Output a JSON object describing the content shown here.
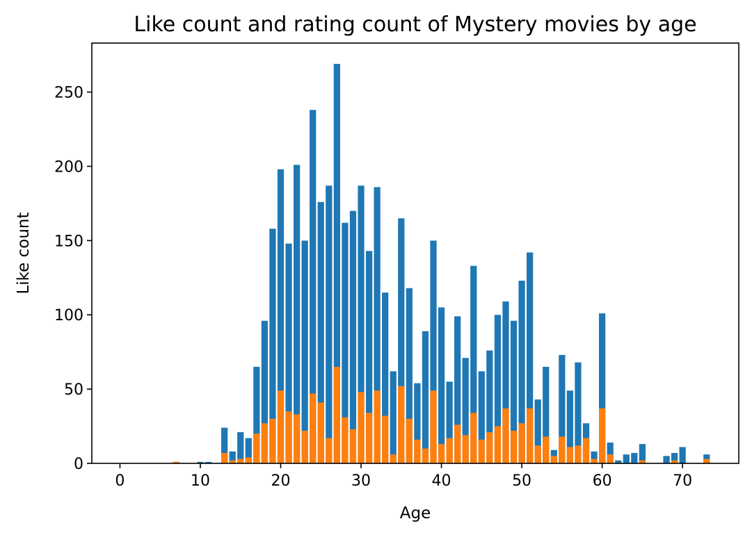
{
  "chart_data": {
    "type": "bar",
    "title": "Like count and rating count of Mystery movies by age",
    "xlabel": "Age",
    "ylabel": "Like count",
    "xlim": [
      -3.5,
      77
    ],
    "ylim": [
      0,
      283
    ],
    "xticks": [
      0,
      10,
      20,
      30,
      40,
      50,
      60,
      70
    ],
    "yticks": [
      0,
      50,
      100,
      150,
      200,
      250
    ],
    "grid": false,
    "legend": "none",
    "x": [
      0,
      1,
      7,
      10,
      11,
      13,
      14,
      15,
      16,
      17,
      18,
      19,
      20,
      21,
      22,
      23,
      24,
      25,
      26,
      27,
      28,
      29,
      30,
      31,
      32,
      33,
      34,
      35,
      36,
      37,
      38,
      39,
      40,
      41,
      42,
      43,
      44,
      45,
      46,
      47,
      48,
      49,
      50,
      51,
      52,
      53,
      54,
      55,
      56,
      57,
      58,
      59,
      60,
      61,
      62,
      63,
      64,
      65,
      68,
      69,
      70,
      73
    ],
    "series": [
      {
        "color": "#1f77b4",
        "values": [
          0,
          0,
          1,
          1,
          1,
          24,
          8,
          21,
          17,
          65,
          96,
          158,
          198,
          148,
          201,
          150,
          238,
          176,
          187,
          269,
          162,
          170,
          187,
          143,
          186,
          115,
          62,
          165,
          118,
          54,
          89,
          150,
          105,
          55,
          99,
          71,
          133,
          62,
          76,
          100,
          109,
          96,
          123,
          142,
          43,
          65,
          9,
          73,
          49,
          68,
          27,
          8,
          101,
          14,
          2,
          6,
          7,
          13,
          5,
          7,
          11,
          6
        ]
      },
      {
        "color": "#ff7f0e",
        "values": [
          0,
          0,
          1,
          0,
          0,
          7,
          2,
          3,
          4,
          20,
          27,
          30,
          49,
          35,
          33,
          22,
          47,
          41,
          17,
          65,
          31,
          23,
          48,
          34,
          49,
          32,
          6,
          52,
          30,
          16,
          10,
          49,
          13,
          17,
          26,
          19,
          34,
          16,
          21,
          25,
          37,
          22,
          27,
          37,
          12,
          18,
          5,
          18,
          11,
          12,
          17,
          3,
          37,
          6,
          0,
          0,
          0,
          2,
          0,
          2,
          0,
          3
        ]
      }
    ]
  }
}
